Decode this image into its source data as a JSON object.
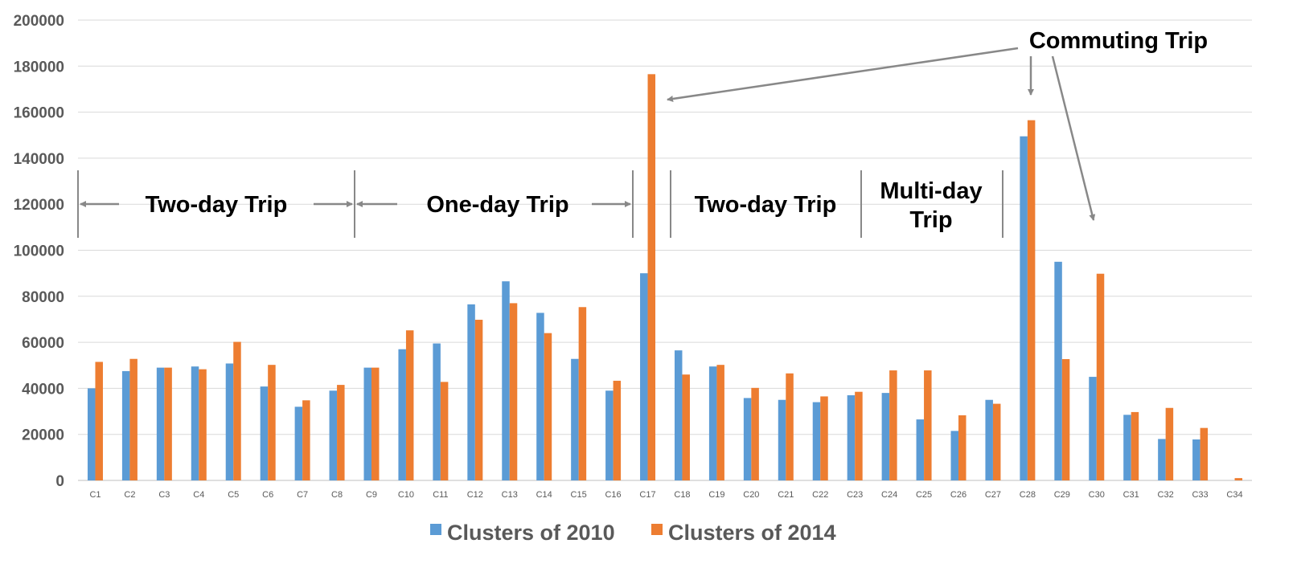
{
  "chart_data": {
    "type": "bar",
    "categories": [
      "C1",
      "C2",
      "C3",
      "C4",
      "C5",
      "C6",
      "C7",
      "C8",
      "C9",
      "C10",
      "C11",
      "C12",
      "C13",
      "C14",
      "C15",
      "C16",
      "C17",
      "C18",
      "C19",
      "C20",
      "C21",
      "C22",
      "C23",
      "C24",
      "C25",
      "C26",
      "C27",
      "C28",
      "C29",
      "C30",
      "C31",
      "C32",
      "C33",
      "C34"
    ],
    "series": [
      {
        "name": "Clusters of 2010",
        "color": "#5B9BD5",
        "values": [
          40000,
          47500,
          49000,
          49500,
          50800,
          40800,
          32000,
          39000,
          49000,
          57000,
          59500,
          76500,
          86500,
          72800,
          52800,
          39000,
          90000,
          56500,
          49500,
          35800,
          35000,
          34000,
          37000,
          38000,
          26500,
          21500,
          35000,
          149500,
          95000,
          45000,
          28500,
          18000,
          17800,
          0
        ]
      },
      {
        "name": "Clusters of 2014",
        "color": "#ED7D31",
        "values": [
          51500,
          52800,
          49000,
          48300,
          60200,
          50200,
          34800,
          41500,
          49000,
          65200,
          42800,
          69800,
          77000,
          64000,
          75300,
          43300,
          176500,
          46000,
          50200,
          40200,
          46500,
          36500,
          38500,
          47800,
          47800,
          28300,
          33300,
          156500,
          52700,
          89800,
          29700,
          31500,
          22800,
          1000
        ]
      }
    ],
    "ylim": [
      0,
      200000
    ],
    "yticks": [
      0,
      20000,
      40000,
      60000,
      80000,
      100000,
      120000,
      140000,
      160000,
      180000,
      200000
    ],
    "ytick_labels": [
      "0",
      "20000",
      "40000",
      "60000",
      "80000",
      "100000",
      "120000",
      "140000",
      "160000",
      "180000",
      "200000"
    ],
    "grid": true,
    "legend_position": "bottom",
    "annotations": {
      "two_day_trip_1": "Two-day Trip",
      "one_day_trip": "One-day Trip",
      "two_day_trip_2": "Two-day Trip",
      "multi_day_trip_line1": "Multi-day",
      "multi_day_trip_line2": "Trip",
      "commuting_trip": "Commuting Trip"
    }
  }
}
